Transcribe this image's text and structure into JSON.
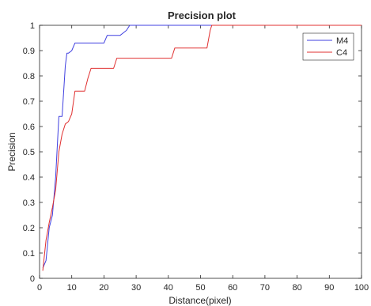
{
  "chart_data": {
    "type": "line",
    "title": "Precision plot",
    "xlabel": "Distance(pixel)",
    "ylabel": "Precision",
    "xlim": [
      0,
      100
    ],
    "ylim": [
      0,
      1
    ],
    "xticks": [
      "0",
      "10",
      "20",
      "30",
      "40",
      "50",
      "60",
      "70",
      "80",
      "90",
      "100"
    ],
    "yticks": [
      "0",
      "0.1",
      "0.2",
      "0.3",
      "0.4",
      "0.5",
      "0.6",
      "0.7",
      "0.8",
      "0.9",
      "1"
    ],
    "grid": false,
    "legend_position": "top-right",
    "series": [
      {
        "name": "M4",
        "color": "#4040e0",
        "points": [
          [
            1,
            0.04
          ],
          [
            2,
            0.07
          ],
          [
            3,
            0.2
          ],
          [
            4,
            0.25
          ],
          [
            5,
            0.4
          ],
          [
            6,
            0.64
          ],
          [
            7,
            0.64
          ],
          [
            8,
            0.84
          ],
          [
            8.5,
            0.89
          ],
          [
            9,
            0.89
          ],
          [
            10,
            0.9
          ],
          [
            11,
            0.93
          ],
          [
            20,
            0.93
          ],
          [
            21,
            0.96
          ],
          [
            25,
            0.96
          ],
          [
            26,
            0.97
          ],
          [
            27,
            0.98
          ],
          [
            28,
            1.0
          ],
          [
            100,
            1.0
          ]
        ]
      },
      {
        "name": "C4",
        "color": "#e03030",
        "points": [
          [
            1,
            0.03
          ],
          [
            2,
            0.15
          ],
          [
            3,
            0.22
          ],
          [
            4,
            0.28
          ],
          [
            5,
            0.35
          ],
          [
            6,
            0.5
          ],
          [
            7,
            0.57
          ],
          [
            8,
            0.61
          ],
          [
            9,
            0.62
          ],
          [
            10,
            0.65
          ],
          [
            11,
            0.74
          ],
          [
            14,
            0.74
          ],
          [
            15,
            0.79
          ],
          [
            16,
            0.83
          ],
          [
            23,
            0.83
          ],
          [
            24,
            0.87
          ],
          [
            41,
            0.87
          ],
          [
            42,
            0.91
          ],
          [
            52,
            0.91
          ],
          [
            53,
            0.98
          ],
          [
            53.5,
            1.0
          ],
          [
            100,
            1.0
          ]
        ]
      }
    ]
  }
}
